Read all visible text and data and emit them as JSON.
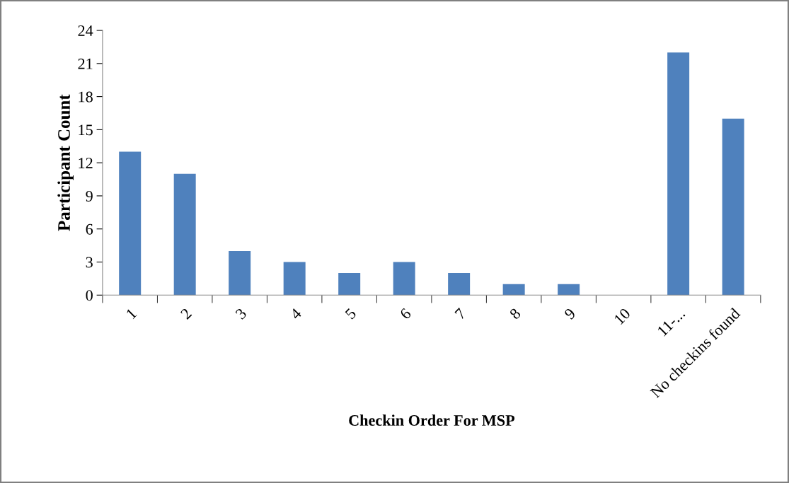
{
  "chart_data": {
    "type": "bar",
    "xlabel": "Checkin Order For MSP",
    "ylabel": "Participant Count",
    "categories": [
      "1",
      "2",
      "3",
      "4",
      "5",
      "6",
      "7",
      "8",
      "9",
      "10",
      "11-...",
      "No checkins found"
    ],
    "values": [
      13,
      11,
      4,
      3,
      2,
      3,
      2,
      1,
      1,
      0,
      22,
      16
    ],
    "color": "#4f81bd",
    "ylim": [
      0,
      24
    ],
    "yticks": [
      0,
      3,
      6,
      9,
      12,
      15,
      18,
      21,
      24
    ],
    "grid": false,
    "legend": false
  }
}
